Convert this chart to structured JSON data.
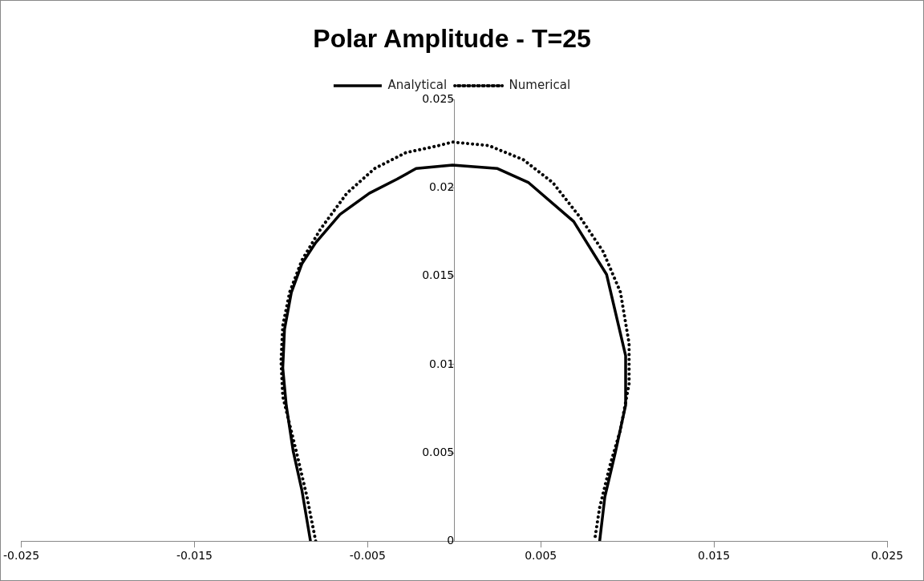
{
  "chart_data": {
    "type": "line",
    "title": "Polar Amplitude - T=25",
    "legend": "top",
    "marker": "none",
    "grid": false,
    "xlim": [
      -0.025,
      0.025
    ],
    "xticks": [
      -0.025,
      -0.015,
      -0.005,
      0.005,
      0.015,
      0.025
    ],
    "ylim": [
      0,
      0.025
    ],
    "yticks": [
      0,
      0.005,
      0.01,
      0.015,
      0.02,
      0.025
    ],
    "series": [
      {
        "name": "Analytical",
        "color": "#000000",
        "line_style": "solid",
        "x": [
          -0.0083,
          -0.0088,
          -0.0093,
          -0.0097,
          -0.0099,
          -0.0098,
          -0.0094,
          -0.0088,
          -0.008,
          -0.0066,
          -0.0049,
          -0.0033,
          -0.0022,
          -0.0001,
          0.0025,
          0.0043,
          0.0069,
          0.0088,
          0.0099,
          0.0099,
          0.0093,
          0.0087,
          0.0084
        ],
        "values": [
          0,
          0.0029,
          0.0051,
          0.0077,
          0.0098,
          0.012,
          0.0141,
          0.0157,
          0.0169,
          0.0185,
          0.0197,
          0.0205,
          0.0211,
          0.0213,
          0.0211,
          0.0203,
          0.0181,
          0.0151,
          0.0105,
          0.0077,
          0.005,
          0.0025,
          0
        ]
      },
      {
        "name": "Numerical",
        "color": "#000000",
        "line_style": "dotted",
        "x": [
          -0.008,
          -0.0085,
          -0.0091,
          -0.0099,
          -0.01,
          -0.0099,
          -0.0095,
          -0.0088,
          -0.0077,
          -0.0062,
          -0.0046,
          -0.0028,
          -0.0009,
          -0.0001,
          0.002,
          0.004,
          0.0057,
          0.0073,
          0.0086,
          0.0096,
          0.0101,
          0.0101,
          0.0096,
          0.009,
          0.0084,
          0.0081
        ],
        "values": [
          0,
          0.0025,
          0.005,
          0.0082,
          0.0102,
          0.0122,
          0.0141,
          0.0159,
          0.0177,
          0.0197,
          0.0211,
          0.022,
          0.0224,
          0.0226,
          0.0224,
          0.0216,
          0.0203,
          0.0183,
          0.0164,
          0.0141,
          0.0112,
          0.0089,
          0.0063,
          0.0043,
          0.0019,
          0
        ]
      }
    ]
  }
}
